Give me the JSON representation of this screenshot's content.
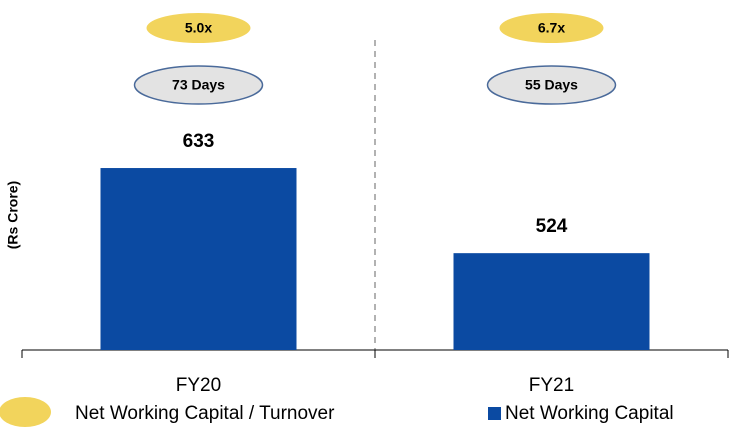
{
  "chart_data": {
    "type": "bar",
    "ylabel": "(Rs Crore)",
    "categories": [
      "FY20",
      "FY21"
    ],
    "series": [
      {
        "name": "Net Working Capital",
        "color": "#0b4aa2",
        "values": [
          633,
          524
        ]
      }
    ],
    "ratio_series": {
      "name": "Net Working Capital / Turnover",
      "color": "#f2d45c",
      "labels": [
        "5.0x",
        "6.7x"
      ]
    },
    "days_labels": [
      "73 Days",
      "55 Days"
    ],
    "days_color": "#e3e3e3",
    "ylim": [
      400,
      820
    ]
  }
}
